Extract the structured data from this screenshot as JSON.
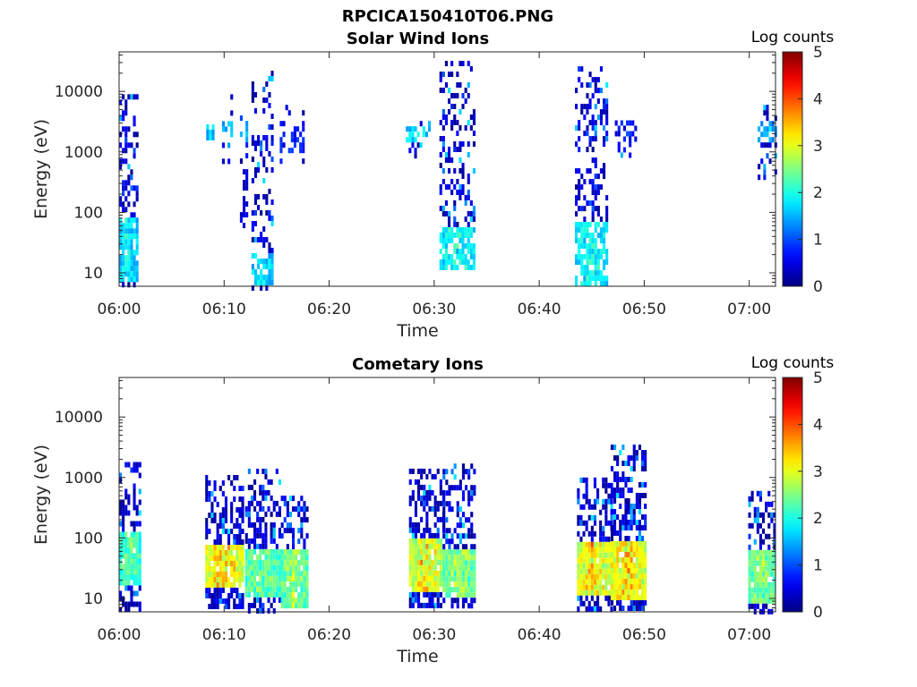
{
  "figure": {
    "title": "RPCICA150410T06.PNG"
  },
  "colors": {
    "axis": "#262626",
    "background": "#ffffff"
  },
  "chart_data": [
    {
      "type": "heatmap",
      "title": "Solar Wind Ions",
      "xlabel": "Time",
      "ylabel": "Energy (eV)",
      "x_tick_labels": [
        "06:00",
        "06:10",
        "06:20",
        "06:30",
        "06:40",
        "06:50",
        "07:00"
      ],
      "xlim_minutes": [
        0,
        62.5
      ],
      "y_scale": "log",
      "ylim": [
        6,
        45000
      ],
      "y_tick_labels": [
        "10",
        "100",
        "1000",
        "10000"
      ],
      "y_tick_values": [
        10,
        100,
        1000,
        10000
      ],
      "colorbar": {
        "label": "Log counts",
        "range": [
          0,
          5
        ],
        "tick_labels": [
          "0",
          "1",
          "2",
          "3",
          "4",
          "5"
        ],
        "colormap": "jet"
      },
      "bursts": [
        {
          "t0": 0.0,
          "t1": 1.6,
          "emin": 6,
          "emax": 9000,
          "core_emin": 7,
          "core_emax": 90,
          "core_level": 1.6,
          "peak_level": 2.0,
          "density": 0.55
        },
        {
          "t0": 8.3,
          "t1": 9.0,
          "emin": 1500,
          "emax": 3500,
          "core_emin": 1500,
          "core_emax": 2600,
          "core_level": 1.5,
          "peak_level": 1.8,
          "density": 0.5
        },
        {
          "t0": 9.8,
          "t1": 10.8,
          "emin": 400,
          "emax": 11000,
          "core_emin": 1600,
          "core_emax": 3000,
          "core_level": 1.3,
          "peak_level": 1.7,
          "density": 0.25
        },
        {
          "t0": 11.5,
          "t1": 12.2,
          "emin": 45,
          "emax": 4000,
          "core_emin": 1500,
          "core_emax": 3000,
          "core_level": 1.4,
          "peak_level": 1.9,
          "density": 0.3
        },
        {
          "t0": 12.6,
          "t1": 14.5,
          "emin": 6,
          "emax": 22000,
          "core_emin": 6,
          "core_emax": 20,
          "core_level": 1.6,
          "peak_level": 2.0,
          "density": 0.4
        },
        {
          "t0": 15.3,
          "t1": 17.6,
          "emin": 700,
          "emax": 6000,
          "core_emin": 1000,
          "core_emax": 3000,
          "core_level": 0.6,
          "peak_level": 0.8,
          "density": 0.08
        },
        {
          "t0": 27.3,
          "t1": 29.5,
          "emin": 900,
          "emax": 6000,
          "core_emin": 1500,
          "core_emax": 2500,
          "core_level": 1.6,
          "peak_level": 2.0,
          "density": 0.12
        },
        {
          "t0": 30.5,
          "t1": 33.7,
          "emin": 12,
          "emax": 32000,
          "core_emin": 12,
          "core_emax": 60,
          "core_level": 1.7,
          "peak_level": 2.2,
          "density": 0.45
        },
        {
          "t0": 43.4,
          "t1": 46.4,
          "emin": 6,
          "emax": 26000,
          "core_emin": 6,
          "core_emax": 70,
          "core_level": 1.7,
          "peak_level": 2.2,
          "density": 0.5
        },
        {
          "t0": 47.2,
          "t1": 49.2,
          "emin": 900,
          "emax": 5000,
          "core_emin": 1000,
          "core_emax": 3000,
          "core_level": 0.6,
          "peak_level": 0.8,
          "density": 0.08
        },
        {
          "t0": 60.8,
          "t1": 62.5,
          "emin": 400,
          "emax": 6000,
          "core_emin": 1500,
          "core_emax": 3000,
          "core_level": 1.3,
          "peak_level": 1.7,
          "density": 0.3
        }
      ]
    },
    {
      "type": "heatmap",
      "title": "Cometary Ions",
      "xlabel": "Time",
      "ylabel": "Energy (eV)",
      "x_tick_labels": [
        "06:00",
        "06:10",
        "06:20",
        "06:30",
        "06:40",
        "06:50",
        "07:00"
      ],
      "xlim_minutes": [
        0,
        62.5
      ],
      "y_scale": "log",
      "ylim": [
        6,
        45000
      ],
      "y_tick_labels": [
        "10",
        "100",
        "1000",
        "10000"
      ],
      "y_tick_values": [
        10,
        100,
        1000,
        10000
      ],
      "colorbar": {
        "label": "Log counts",
        "range": [
          0,
          5
        ],
        "tick_labels": [
          "0",
          "1",
          "2",
          "3",
          "4",
          "5"
        ],
        "colormap": "jet"
      },
      "bursts": [
        {
          "t0": 0.0,
          "t1": 1.9,
          "emin": 7,
          "emax": 1800,
          "core_emin": 15,
          "core_emax": 120,
          "core_level": 2.0,
          "peak_level": 2.6,
          "density": 0.65
        },
        {
          "t0": 8.2,
          "t1": 11.8,
          "emin": 7,
          "emax": 1100,
          "core_emin": 15,
          "core_emax": 80,
          "core_level": 2.8,
          "peak_level": 3.9,
          "density": 0.7
        },
        {
          "t0": 12.0,
          "t1": 15.4,
          "emin": 6,
          "emax": 1400,
          "core_emin": 10,
          "core_emax": 60,
          "core_level": 2.1,
          "peak_level": 2.8,
          "density": 0.6
        },
        {
          "t0": 15.4,
          "t1": 17.9,
          "emin": 7,
          "emax": 500,
          "core_emin": 7,
          "core_emax": 60,
          "core_level": 2.2,
          "peak_level": 3.0,
          "density": 0.6
        },
        {
          "t0": 27.6,
          "t1": 30.8,
          "emin": 7,
          "emax": 1400,
          "core_emin": 12,
          "core_emax": 90,
          "core_level": 2.6,
          "peak_level": 3.8,
          "density": 0.7
        },
        {
          "t0": 30.8,
          "t1": 33.9,
          "emin": 7,
          "emax": 1700,
          "core_emin": 10,
          "core_emax": 70,
          "core_level": 2.2,
          "peak_level": 3.0,
          "density": 0.65
        },
        {
          "t0": 43.6,
          "t1": 46.8,
          "emin": 7,
          "emax": 1000,
          "core_emin": 12,
          "core_emax": 80,
          "core_level": 2.7,
          "peak_level": 3.8,
          "density": 0.7
        },
        {
          "t0": 46.8,
          "t1": 50.0,
          "emin": 7,
          "emax": 3500,
          "core_emin": 10,
          "core_emax": 80,
          "core_level": 2.8,
          "peak_level": 3.9,
          "density": 0.7
        },
        {
          "t0": 59.9,
          "t1": 62.5,
          "emin": 6,
          "emax": 600,
          "core_emin": 8,
          "core_emax": 60,
          "core_level": 2.2,
          "peak_level": 2.9,
          "density": 0.6
        }
      ]
    }
  ]
}
